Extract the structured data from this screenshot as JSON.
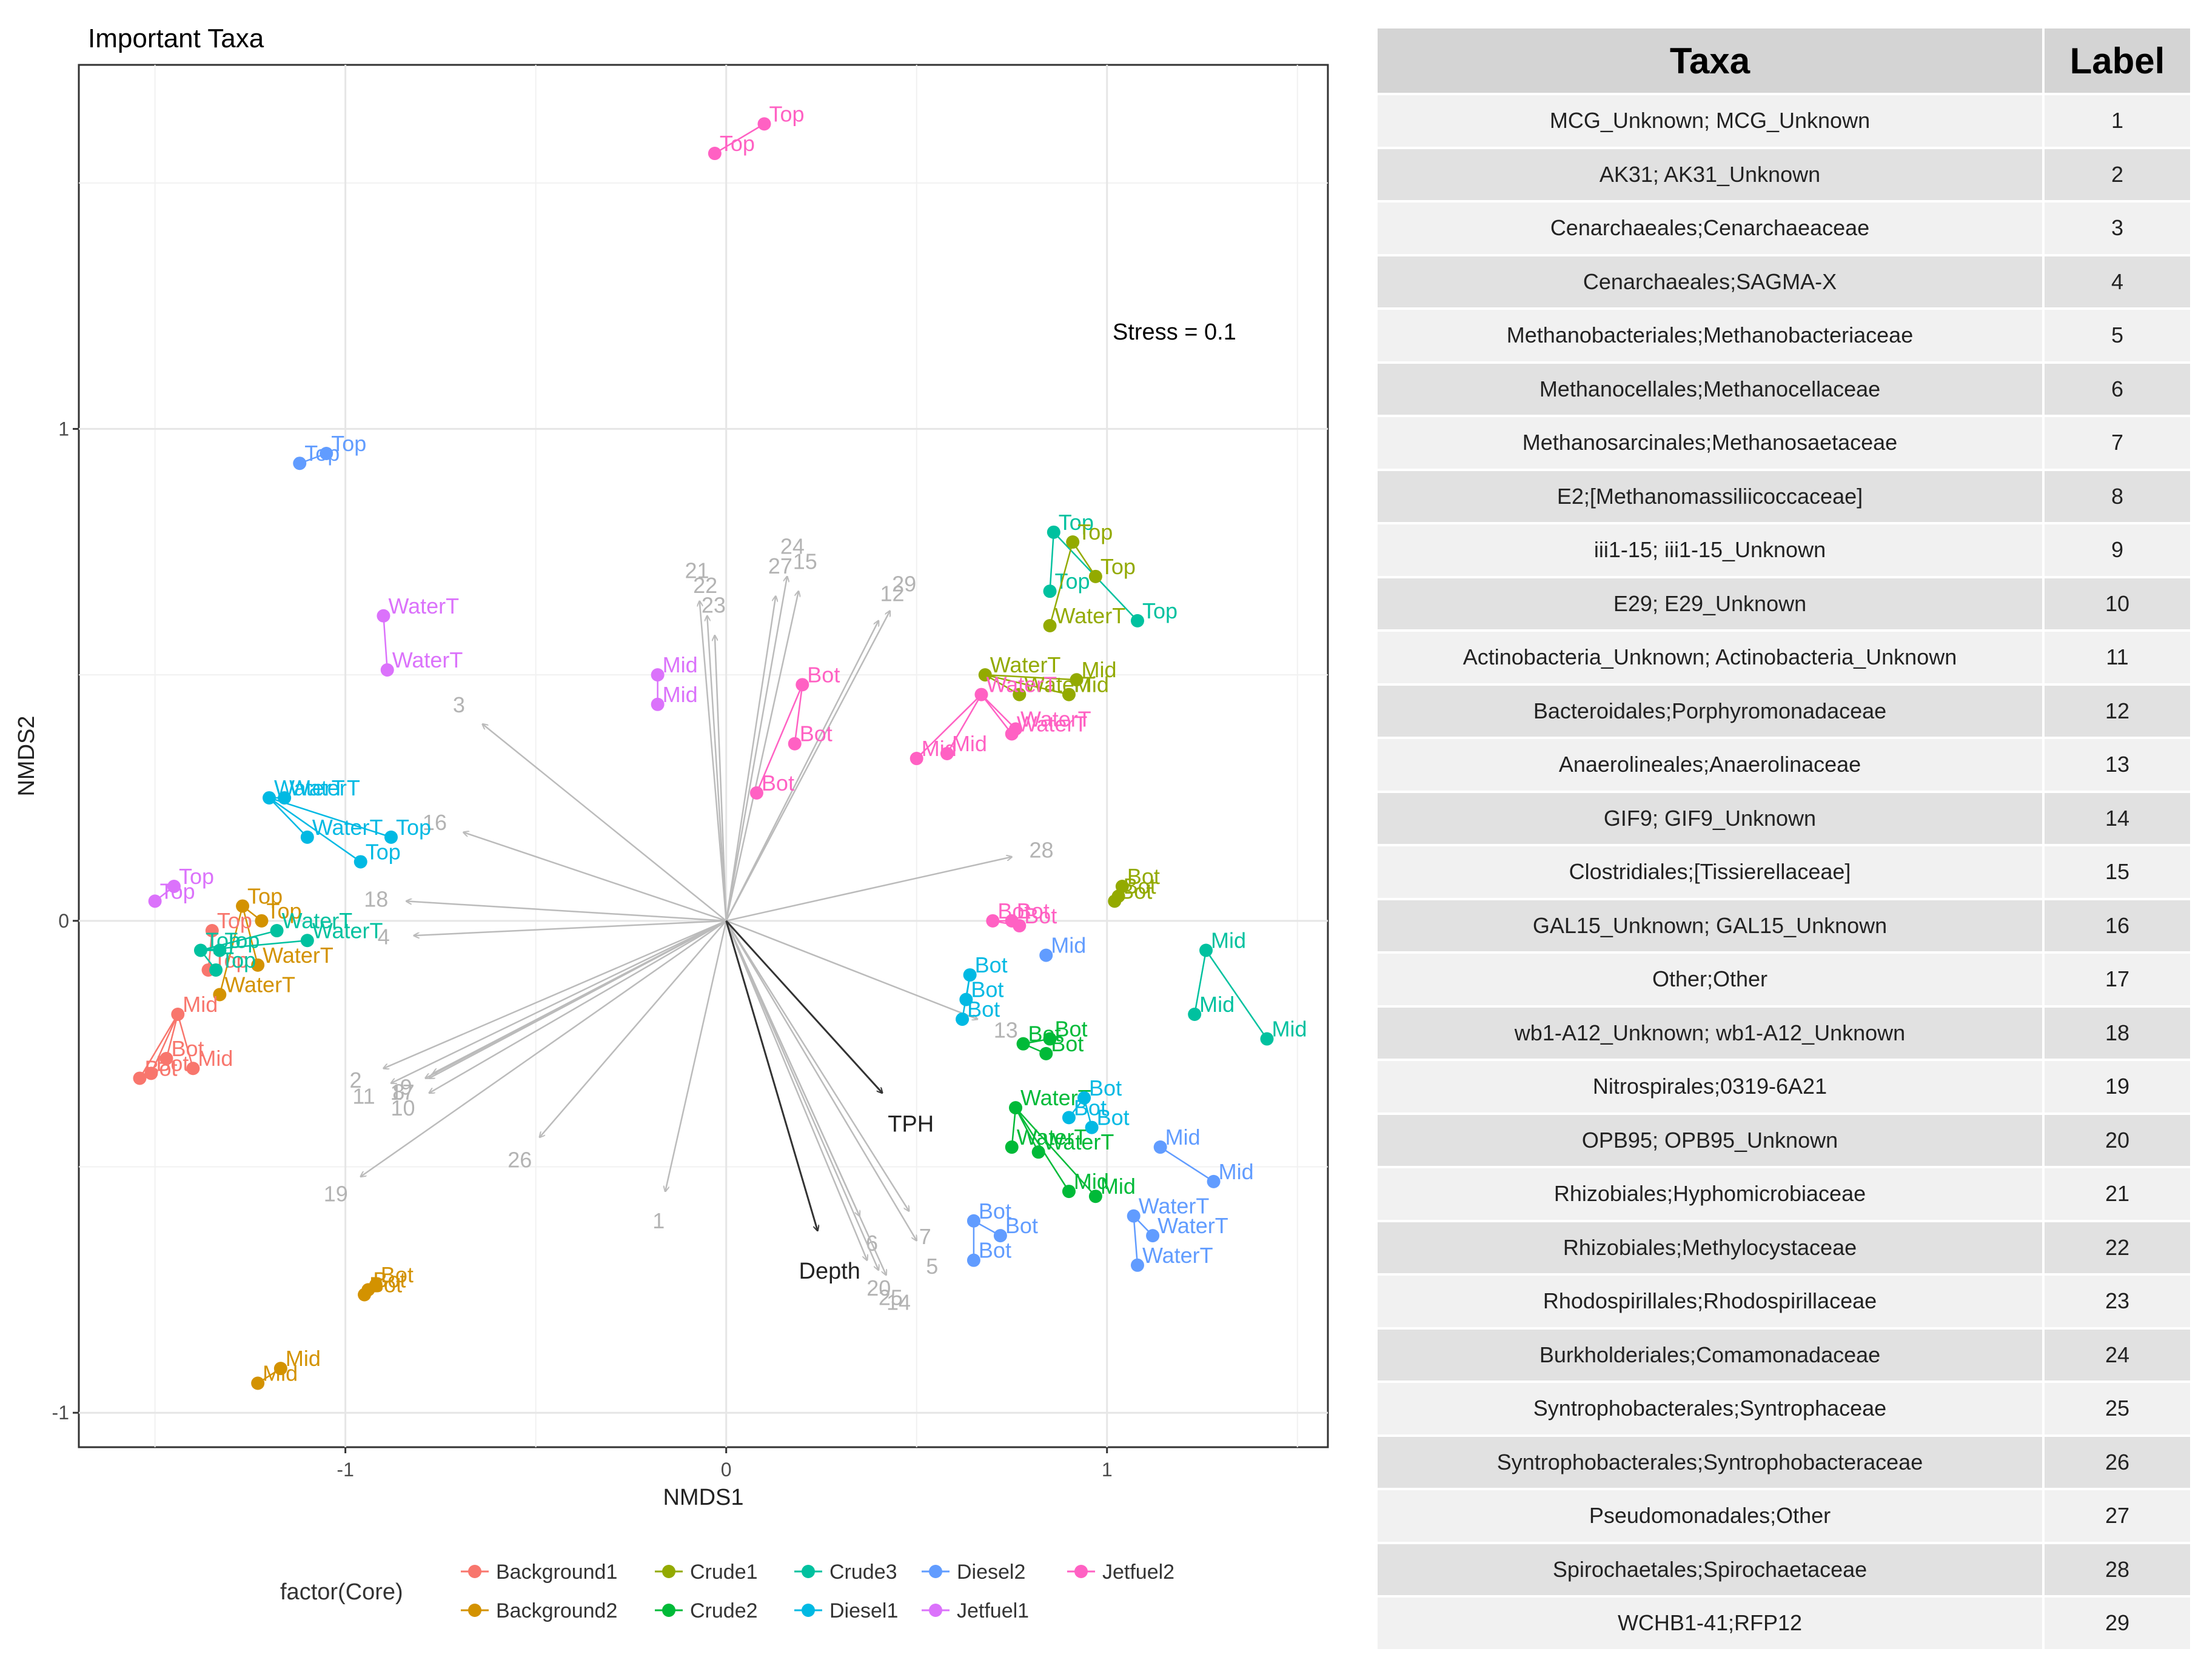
{
  "chart_data": {
    "type": "scatter",
    "title": "Important Taxa",
    "xlabel": "NMDS1",
    "ylabel": "NMDS2",
    "xlim": [
      -1.7,
      1.58
    ],
    "ylim": [
      -1.07,
      1.74
    ],
    "xticks": [
      -1,
      0,
      1
    ],
    "yticks": [
      -1,
      0,
      1
    ],
    "grid": true,
    "stress_label": "Stress = 0.1",
    "legend": {
      "title": "factor(Core)",
      "position": "bottom",
      "entries": [
        "Background1",
        "Background2",
        "Crude1",
        "Crude2",
        "Crude3",
        "Diesel1",
        "Diesel2",
        "Jetfuel1",
        "Jetfuel2"
      ]
    },
    "colors": {
      "Background1": "#F8766D",
      "Background2": "#D39200",
      "Crude1": "#93AA00",
      "Crude2": "#00BA38",
      "Crude3": "#00C19F",
      "Diesel1": "#00B9E3",
      "Diesel2": "#619CFF",
      "Jetfuel1": "#DB72FB",
      "Jetfuel2": "#FF61C3",
      "vector": "#bbbbbb",
      "env_vector": "#333333"
    },
    "sites": [
      {
        "group": "Jetfuel2",
        "points": [
          [
            0.1,
            1.62,
            "Top"
          ],
          [
            -0.03,
            1.56,
            "Top"
          ]
        ]
      },
      {
        "group": "Diesel2",
        "points": [
          [
            -1.05,
            0.95,
            "Top"
          ],
          [
            -1.12,
            0.93,
            "Top"
          ]
        ]
      },
      {
        "group": "Jetfuel1",
        "points": [
          [
            -0.9,
            0.62,
            "WaterT"
          ],
          [
            -0.89,
            0.51,
            "WaterT"
          ]
        ]
      },
      {
        "group": "Jetfuel1",
        "points": [
          [
            -0.18,
            0.5,
            "Mid"
          ],
          [
            -0.18,
            0.44,
            "Mid"
          ]
        ]
      },
      {
        "group": "Jetfuel2",
        "points": [
          [
            0.2,
            0.48,
            "Bot"
          ],
          [
            0.18,
            0.36,
            "Bot"
          ],
          [
            0.08,
            0.26,
            "Bot"
          ]
        ]
      },
      {
        "group": "Crude3",
        "points": [
          [
            0.86,
            0.79,
            "Top"
          ],
          [
            1.08,
            0.61,
            "Top"
          ],
          [
            0.85,
            0.67,
            "Top"
          ]
        ]
      },
      {
        "group": "Crude1",
        "points": [
          [
            0.91,
            0.77,
            "Top"
          ],
          [
            0.97,
            0.7,
            "Top"
          ],
          [
            0.85,
            0.6,
            "WaterT"
          ]
        ]
      },
      {
        "group": "Crude1",
        "points": [
          [
            0.68,
            0.5,
            "WaterT"
          ],
          [
            0.77,
            0.46,
            "WaterT"
          ],
          [
            0.92,
            0.49,
            "Mid"
          ],
          [
            0.9,
            0.46,
            "Mid"
          ]
        ]
      },
      {
        "group": "Jetfuel2",
        "points": [
          [
            0.67,
            0.46,
            "WaterT"
          ],
          [
            0.76,
            0.39,
            "WaterT"
          ],
          [
            0.75,
            0.38,
            "WaterT"
          ],
          [
            0.5,
            0.33,
            "Mid"
          ],
          [
            0.58,
            0.34,
            "Mid"
          ]
        ]
      },
      {
        "group": "Diesel1",
        "points": [
          [
            -1.2,
            0.25,
            "WaterT"
          ],
          [
            -1.16,
            0.25,
            "WaterT"
          ],
          [
            -1.1,
            0.17,
            "WaterT"
          ],
          [
            -0.88,
            0.17,
            "Top"
          ],
          [
            -0.96,
            0.12,
            "Top"
          ]
        ]
      },
      {
        "group": "Jetfuel1",
        "points": [
          [
            -1.45,
            0.07,
            "Top"
          ],
          [
            -1.5,
            0.04,
            "Top"
          ]
        ]
      },
      {
        "group": "Background2",
        "points": [
          [
            -1.27,
            0.03,
            "Top"
          ],
          [
            -1.22,
            0.0,
            "Top"
          ],
          [
            -1.33,
            -0.15,
            "WaterT"
          ],
          [
            -1.23,
            -0.09,
            "WaterT"
          ]
        ]
      },
      {
        "group": "Background1",
        "points": [
          [
            -1.35,
            -0.02,
            "Top"
          ],
          [
            -1.36,
            -0.1,
            "Top"
          ]
        ]
      },
      {
        "group": "Crude3",
        "points": [
          [
            -1.38,
            -0.06,
            "Top"
          ],
          [
            -1.33,
            -0.06,
            "Top"
          ],
          [
            -1.18,
            -0.02,
            "WaterT"
          ],
          [
            -1.1,
            -0.04,
            "WaterT"
          ],
          [
            -1.34,
            -0.1,
            "Top"
          ]
        ]
      },
      {
        "group": "Background1",
        "points": [
          [
            -1.44,
            -0.19,
            "Mid"
          ],
          [
            -1.4,
            -0.3,
            "Mid"
          ],
          [
            -1.47,
            -0.28,
            "Bot"
          ],
          [
            -1.54,
            -0.32,
            "Bot"
          ],
          [
            -1.51,
            -0.31,
            "Bot"
          ]
        ]
      },
      {
        "group": "Crude1",
        "points": [
          [
            1.04,
            0.07,
            "Bot"
          ],
          [
            1.02,
            0.04,
            "Bot"
          ],
          [
            1.03,
            0.05,
            "Bot"
          ]
        ]
      },
      {
        "group": "Jetfuel2",
        "points": [
          [
            0.7,
            0.0,
            "Bot"
          ],
          [
            0.75,
            0.0,
            "Bot"
          ],
          [
            0.77,
            -0.01,
            "Bot"
          ]
        ]
      },
      {
        "group": "Diesel2",
        "points": [
          [
            0.84,
            -0.07,
            "Mid"
          ]
        ]
      },
      {
        "group": "Diesel1",
        "points": [
          [
            0.64,
            -0.11,
            "Bot"
          ],
          [
            0.63,
            -0.16,
            "Bot"
          ],
          [
            0.62,
            -0.2,
            "Bot"
          ]
        ]
      },
      {
        "group": "Crude3",
        "points": [
          [
            1.26,
            -0.06,
            "Mid"
          ],
          [
            1.23,
            -0.19,
            "Mid"
          ],
          [
            1.42,
            -0.24,
            "Mid"
          ]
        ]
      },
      {
        "group": "Crude2",
        "points": [
          [
            0.78,
            -0.25,
            "Bot"
          ],
          [
            0.84,
            -0.27,
            "Bot"
          ],
          [
            0.85,
            -0.24,
            "Bot"
          ]
        ]
      },
      {
        "group": "Crude2",
        "points": [
          [
            0.76,
            -0.38,
            "WaterT"
          ],
          [
            0.75,
            -0.46,
            "WaterT"
          ],
          [
            0.82,
            -0.47,
            "WaterT"
          ],
          [
            0.9,
            -0.55,
            "Mid"
          ],
          [
            0.97,
            -0.56,
            "Mid"
          ]
        ]
      },
      {
        "group": "Diesel1",
        "points": [
          [
            0.94,
            -0.36,
            "Bot"
          ],
          [
            0.9,
            -0.4,
            "Bot"
          ],
          [
            0.96,
            -0.42,
            "Bot"
          ]
        ]
      },
      {
        "group": "Diesel2",
        "points": [
          [
            1.14,
            -0.46,
            "Mid"
          ],
          [
            1.28,
            -0.53,
            "Mid"
          ]
        ]
      },
      {
        "group": "Diesel2",
        "points": [
          [
            1.07,
            -0.6,
            "WaterT"
          ],
          [
            1.12,
            -0.64,
            "WaterT"
          ],
          [
            1.08,
            -0.7,
            "WaterT"
          ]
        ]
      },
      {
        "group": "Diesel2",
        "points": [
          [
            0.65,
            -0.61,
            "Bot"
          ],
          [
            0.72,
            -0.64,
            "Bot"
          ],
          [
            0.65,
            -0.69,
            "Bot"
          ]
        ]
      },
      {
        "group": "Background2",
        "points": [
          [
            -0.92,
            -0.74,
            "Bot"
          ],
          [
            -0.95,
            -0.76,
            "Bot"
          ],
          [
            -0.94,
            -0.75,
            "Bot"
          ]
        ]
      },
      {
        "group": "Background2",
        "points": [
          [
            -1.17,
            -0.91,
            "Mid"
          ],
          [
            -1.23,
            -0.94,
            "Mid"
          ]
        ]
      }
    ],
    "vectors": [
      {
        "label": "1",
        "x": -0.16,
        "y": -0.55
      },
      {
        "label": "2",
        "x": -0.9,
        "y": -0.3
      },
      {
        "label": "3",
        "x": -0.64,
        "y": 0.4
      },
      {
        "label": "4",
        "x": -0.82,
        "y": -0.03
      },
      {
        "label": "5",
        "x": 0.5,
        "y": -0.65
      },
      {
        "label": "6",
        "x": 0.35,
        "y": -0.6
      },
      {
        "label": "7",
        "x": 0.48,
        "y": -0.59
      },
      {
        "label": "8",
        "x": -0.79,
        "y": -0.32
      },
      {
        "label": "9",
        "x": -0.77,
        "y": -0.31
      },
      {
        "label": "10",
        "x": -0.78,
        "y": -0.35
      },
      {
        "label": "11",
        "x": -0.88,
        "y": -0.33
      },
      {
        "label": "12",
        "x": 0.4,
        "y": 0.61
      },
      {
        "label": "13",
        "x": 0.66,
        "y": -0.2
      },
      {
        "label": "14",
        "x": 0.42,
        "y": -0.72
      },
      {
        "label": "15",
        "x": 0.19,
        "y": 0.67
      },
      {
        "label": "16",
        "x": -0.69,
        "y": 0.18
      },
      {
        "label": "17",
        "x": -0.78,
        "y": -0.32
      },
      {
        "label": "18",
        "x": -0.84,
        "y": 0.04
      },
      {
        "label": "19",
        "x": -0.96,
        "y": -0.52
      },
      {
        "label": "20",
        "x": 0.37,
        "y": -0.69
      },
      {
        "label": "21",
        "x": -0.07,
        "y": 0.65
      },
      {
        "label": "22",
        "x": -0.05,
        "y": 0.62
      },
      {
        "label": "23",
        "x": -0.03,
        "y": 0.58
      },
      {
        "label": "24",
        "x": 0.16,
        "y": 0.7
      },
      {
        "label": "25",
        "x": 0.4,
        "y": -0.71
      },
      {
        "label": "26",
        "x": -0.49,
        "y": -0.44
      },
      {
        "label": "27",
        "x": 0.13,
        "y": 0.66
      },
      {
        "label": "28",
        "x": 0.75,
        "y": 0.13
      },
      {
        "label": "29",
        "x": 0.43,
        "y": 0.63
      }
    ],
    "env_vectors": [
      {
        "label": "TPH",
        "x": 0.41,
        "y": -0.35
      },
      {
        "label": "Depth",
        "x": 0.24,
        "y": -0.63
      }
    ]
  },
  "table": {
    "headers": [
      "Taxa",
      "Label"
    ],
    "rows": [
      [
        "MCG_Unknown; MCG_Unknown",
        "1"
      ],
      [
        "AK31; AK31_Unknown",
        "2"
      ],
      [
        "Cenarchaeales;Cenarchaeaceae",
        "3"
      ],
      [
        "Cenarchaeales;SAGMA-X",
        "4"
      ],
      [
        "Methanobacteriales;Methanobacteriaceae",
        "5"
      ],
      [
        "Methanocellales;Methanocellaceae",
        "6"
      ],
      [
        "Methanosarcinales;Methanosaetaceae",
        "7"
      ],
      [
        "E2;[Methanomassiliicoccaceae]",
        "8"
      ],
      [
        "iii1-15; iii1-15_Unknown",
        "9"
      ],
      [
        "E29; E29_Unknown",
        "10"
      ],
      [
        "Actinobacteria_Unknown; Actinobacteria_Unknown",
        "11"
      ],
      [
        "Bacteroidales;Porphyromonadaceae",
        "12"
      ],
      [
        "Anaerolineales;Anaerolinaceae",
        "13"
      ],
      [
        "GIF9; GIF9_Unknown",
        "14"
      ],
      [
        "Clostridiales;[Tissierellaceae]",
        "15"
      ],
      [
        "GAL15_Unknown; GAL15_Unknown",
        "16"
      ],
      [
        "Other;Other",
        "17"
      ],
      [
        "wb1-A12_Unknown; wb1-A12_Unknown",
        "18"
      ],
      [
        "Nitrospirales;0319-6A21",
        "19"
      ],
      [
        "OPB95; OPB95_Unknown",
        "20"
      ],
      [
        "Rhizobiales;Hyphomicrobiaceae",
        "21"
      ],
      [
        "Rhizobiales;Methylocystaceae",
        "22"
      ],
      [
        "Rhodospirillales;Rhodospirillaceae",
        "23"
      ],
      [
        "Burkholderiales;Comamonadaceae",
        "24"
      ],
      [
        "Syntrophobacterales;Syntrophaceae",
        "25"
      ],
      [
        "Syntrophobacterales;Syntrophobacteraceae",
        "26"
      ],
      [
        "Pseudomonadales;Other",
        "27"
      ],
      [
        "Spirochaetales;Spirochaetaceae",
        "28"
      ],
      [
        "WCHB1-41;RFP12",
        "29"
      ]
    ]
  }
}
